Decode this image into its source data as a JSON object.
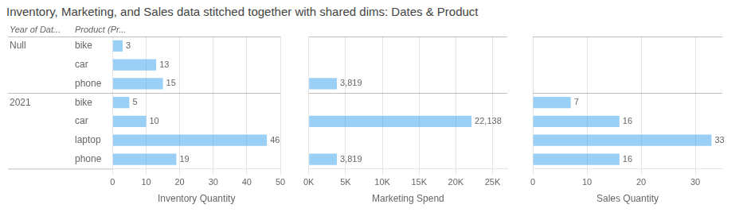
{
  "chart_data": [
    {
      "type": "bar",
      "orientation": "horizontal",
      "title": "Inventory, Marketing, and Sales data stitched together with shared dims: Dates & Product",
      "category_headers": [
        "Year of Dat...",
        "Product (Pr..."
      ],
      "category_groups": [
        "Null",
        null,
        null,
        "2021",
        null,
        null,
        null
      ],
      "categories": [
        "bike",
        "car",
        "phone",
        "bike",
        "car",
        "laptop",
        "phone"
      ],
      "values": [
        3,
        13,
        15,
        5,
        10,
        46,
        19
      ],
      "xlabel": "Inventory Quantity",
      "xlim": [
        0,
        50
      ],
      "xticks": [
        0,
        10,
        20,
        30,
        40,
        50
      ],
      "grid": true,
      "data_labels": true
    },
    {
      "type": "bar",
      "orientation": "horizontal",
      "values": [
        null,
        null,
        3819,
        null,
        22138,
        null,
        3819
      ],
      "value_labels": [
        null,
        null,
        "3,819",
        null,
        "22,138",
        null,
        "3,819"
      ],
      "xlabel": "Marketing Spend",
      "xlim": [
        0,
        27000
      ],
      "xticks": [
        {
          "value": 0,
          "label": "0K"
        },
        {
          "value": 5000,
          "label": "5K"
        },
        {
          "value": 10000,
          "label": "10K"
        },
        {
          "value": 15000,
          "label": "15K"
        },
        {
          "value": 20000,
          "label": "20K"
        },
        {
          "value": 25000,
          "label": "25K"
        }
      ],
      "grid": true,
      "data_labels": true,
      "tick_labels": "x"
    },
    {
      "type": "bar",
      "orientation": "horizontal",
      "values": [
        null,
        null,
        null,
        7,
        16,
        33,
        16
      ],
      "xlabel": "Sales Quantity",
      "xlim": [
        0,
        35
      ],
      "xticks": [
        0,
        10,
        20,
        30
      ],
      "grid": true,
      "data_labels": true,
      "tick_labels": "x"
    }
  ]
}
